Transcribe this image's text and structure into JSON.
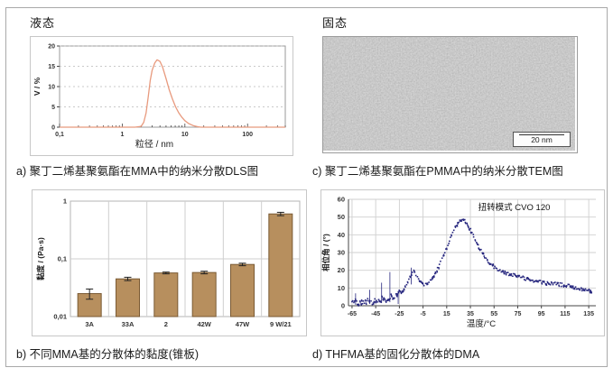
{
  "figure": {
    "top_left_label": "液态",
    "top_right_label": "固态",
    "captions": {
      "a": "a) 聚丁二烯基聚氨酯在MMA中的纳米分散DLS图",
      "b": "b) 不同MMA基的分散体的黏度(锥板)",
      "c": "c) 聚丁二烯基聚氨酯在PMMA中的纳米分散TEM图",
      "d": "d) THFMA基的固化分散体的DMA"
    },
    "tem": {
      "scale_bar_label": "20 nm"
    }
  },
  "colors": {
    "dls_line": "#e89a7e",
    "bar_fill": "#b78f5e",
    "bar_border": "#7a5a33",
    "dma_points": "#26267e",
    "grid": "#cfcfcf",
    "axis": "#444444"
  },
  "chart_data": [
    {
      "id": "dls",
      "type": "line",
      "title": "",
      "xlabel": "粒径 / nm",
      "ylabel": "V / %",
      "x_scale": "log",
      "xlim": [
        0.1,
        400
      ],
      "x_ticks": [
        {
          "v": 0.1,
          "label": "0,1"
        },
        {
          "v": 1,
          "label": "1"
        },
        {
          "v": 10,
          "label": "10"
        },
        {
          "v": 100,
          "label": "100"
        }
      ],
      "ylim": [
        0,
        20
      ],
      "y_ticks": [
        0,
        5,
        10,
        15,
        20
      ],
      "grid": "dashed-horizontal",
      "points": [
        [
          0.1,
          0
        ],
        [
          0.5,
          0
        ],
        [
          1,
          0
        ],
        [
          1.6,
          0
        ],
        [
          2.0,
          0.2
        ],
        [
          2.2,
          1.2
        ],
        [
          2.4,
          3.5
        ],
        [
          2.6,
          7.5
        ],
        [
          2.8,
          11.5
        ],
        [
          3.0,
          14.0
        ],
        [
          3.3,
          15.8
        ],
        [
          3.6,
          16.6
        ],
        [
          4.0,
          16.2
        ],
        [
          4.4,
          14.8
        ],
        [
          5.0,
          12.0
        ],
        [
          5.6,
          9.3
        ],
        [
          6.3,
          7.0
        ],
        [
          7.1,
          5.0
        ],
        [
          8.0,
          3.5
        ],
        [
          9.0,
          2.4
        ],
        [
          10.0,
          1.6
        ],
        [
          11.5,
          0.9
        ],
        [
          13.5,
          0.4
        ],
        [
          16.0,
          0.1
        ],
        [
          18.0,
          0
        ],
        [
          30,
          0
        ],
        [
          100,
          0
        ],
        [
          400,
          0
        ]
      ]
    },
    {
      "id": "viscosity",
      "type": "bar",
      "title": "",
      "xlabel": "",
      "ylabel": "黏度 / (Pa·s)",
      "y_scale": "log",
      "ylim": [
        0.01,
        1
      ],
      "y_ticks": [
        {
          "v": 1,
          "label": "1"
        },
        {
          "v": 0.1,
          "label": "0,1"
        },
        {
          "v": 0.01,
          "label": "0,01"
        }
      ],
      "categories": [
        "3A",
        "33A",
        "2",
        "42W",
        "47W",
        "9 W/21"
      ],
      "values": [
        0.025,
        0.045,
        0.057,
        0.058,
        0.08,
        0.6
      ],
      "errors": [
        0.005,
        0.003,
        0.002,
        0.003,
        0.004,
        0.04
      ]
    },
    {
      "id": "dma",
      "type": "scatter",
      "title": "",
      "annotation": "扭转模式 CVO 120",
      "xlabel": "温度/°C",
      "ylabel": "相位角 / (°)",
      "xlim": [
        -68,
        141
      ],
      "x_ticks": [
        -65,
        -45,
        -25,
        -5,
        15,
        35,
        55,
        75,
        95,
        115,
        135
      ],
      "ylim": [
        0,
        60
      ],
      "y_ticks": [
        0,
        10,
        20,
        30,
        40,
        50,
        60
      ],
      "grid": "full",
      "anchors": [
        [
          -65,
          2
        ],
        [
          -62,
          3
        ],
        [
          -59,
          1.5
        ],
        [
          -56,
          2.5
        ],
        [
          -53,
          2
        ],
        [
          -50,
          3.5
        ],
        [
          -48,
          2
        ],
        [
          -45,
          2.5
        ],
        [
          -42,
          3
        ],
        [
          -40,
          4.5
        ],
        [
          -38,
          3
        ],
        [
          -35,
          4
        ],
        [
          -33,
          5.5
        ],
        [
          -30,
          5
        ],
        [
          -28,
          6.5
        ],
        [
          -25,
          7.5
        ],
        [
          -22,
          9
        ],
        [
          -20,
          11
        ],
        [
          -18,
          13
        ],
        [
          -16,
          16
        ],
        [
          -14,
          19
        ],
        [
          -13,
          20
        ],
        [
          -12,
          19
        ],
        [
          -10,
          16
        ],
        [
          -8,
          14
        ],
        [
          -6,
          12.5
        ],
        [
          -4,
          12
        ],
        [
          -2,
          12.5
        ],
        [
          0,
          13.5
        ],
        [
          2,
          15
        ],
        [
          5,
          18
        ],
        [
          8,
          22
        ],
        [
          10,
          25
        ],
        [
          12,
          28
        ],
        [
          15,
          33
        ],
        [
          18,
          38
        ],
        [
          20,
          41
        ],
        [
          22,
          44
        ],
        [
          25,
          47
        ],
        [
          27,
          48.5
        ],
        [
          28,
          48.8
        ],
        [
          30,
          48
        ],
        [
          32,
          46
        ],
        [
          35,
          43
        ],
        [
          38,
          39
        ],
        [
          40,
          36
        ],
        [
          43,
          32
        ],
        [
          45,
          30
        ],
        [
          48,
          27
        ],
        [
          50,
          25
        ],
        [
          55,
          22
        ],
        [
          60,
          20
        ],
        [
          65,
          18.5
        ],
        [
          70,
          17.5
        ],
        [
          75,
          16.5
        ],
        [
          80,
          15.5
        ],
        [
          85,
          15
        ],
        [
          90,
          14
        ],
        [
          95,
          13.5
        ],
        [
          100,
          13
        ],
        [
          105,
          12.5
        ],
        [
          110,
          12
        ],
        [
          115,
          11.5
        ],
        [
          120,
          11
        ],
        [
          125,
          10
        ],
        [
          130,
          9
        ],
        [
          135,
          8.5
        ],
        [
          138,
          8
        ]
      ],
      "spikes": [
        [
          -62,
          0.5,
          7
        ],
        [
          -50,
          1,
          9
        ],
        [
          -40,
          1.5,
          13
        ],
        [
          -33,
          2,
          19
        ],
        [
          -26,
          1,
          8
        ],
        [
          -15,
          12,
          21.5
        ]
      ],
      "noise": {
        "amp_low": 1.5,
        "amp_mid": 0.7,
        "amp_high": 1.0,
        "low_until": -22,
        "high_from": 45
      }
    }
  ]
}
